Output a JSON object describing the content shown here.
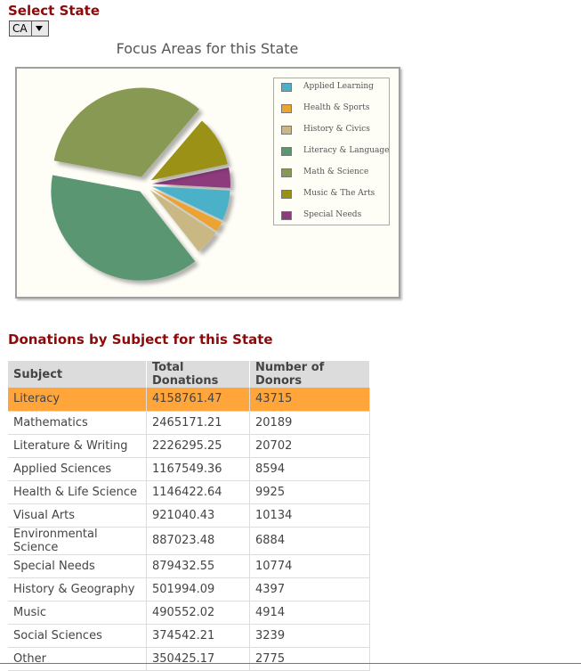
{
  "header": {
    "select_state_title": "Select State"
  },
  "state_select": {
    "value": "CA"
  },
  "chart": {
    "title": "Focus Areas for this State",
    "colors": {
      "Applied Learning": "#4bb1c8",
      "Health & Sports": "#eca331",
      "History & Civics": "#c9b784",
      "Literacy & Language": "#5a9672",
      "Math & Science": "#879953",
      "Music & The Arts": "#9a9113",
      "Special Needs": "#8e3a7e"
    }
  },
  "chart_data": {
    "type": "pie",
    "title": "Focus Areas for this State",
    "legend_placement": "right",
    "slices": [
      {
        "label": "Applied Learning",
        "value": 6
      },
      {
        "label": "Health & Sports",
        "value": 2
      },
      {
        "label": "History & Civics",
        "value": 5
      },
      {
        "label": "Literacy & Language",
        "value": 37
      },
      {
        "label": "Math & Science",
        "value": 32
      },
      {
        "label": "Music & The Arts",
        "value": 10
      },
      {
        "label": "Special Needs",
        "value": 4
      }
    ]
  },
  "donations": {
    "title": "Donations by Subject for this State",
    "columns": [
      "Subject",
      "Total Donations",
      "Number of Donors"
    ],
    "rows": [
      [
        "Literacy",
        "4158761.47",
        "43715"
      ],
      [
        "Mathematics",
        "2465171.21",
        "20189"
      ],
      [
        "Literature & Writing",
        "2226295.25",
        "20702"
      ],
      [
        "Applied Sciences",
        "1167549.36",
        "8594"
      ],
      [
        "Health & Life Science",
        "1146422.64",
        "9925"
      ],
      [
        "Visual Arts",
        "921040.43",
        "10134"
      ],
      [
        "Environmental Science",
        "887023.48",
        "6884"
      ],
      [
        "Special Needs",
        "879432.55",
        "10774"
      ],
      [
        "History & Geography",
        "501994.09",
        "4397"
      ],
      [
        "Music",
        "490552.02",
        "4914"
      ],
      [
        "Social Sciences",
        "374542.21",
        "3239"
      ],
      [
        "Other",
        "350425.17",
        "2775"
      ]
    ]
  }
}
